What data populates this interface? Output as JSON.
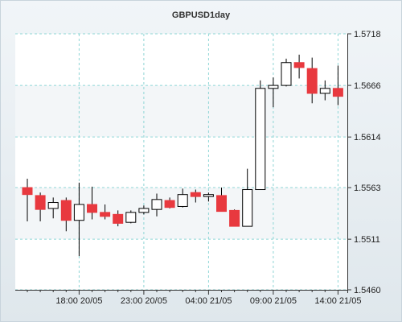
{
  "chart_data": {
    "type": "candlestick",
    "title": "GBPUSD1day",
    "xlabel": "",
    "ylabel": "",
    "ylim": [
      1.546,
      1.5718
    ],
    "y_ticks": [
      "1.5718",
      "1.5666",
      "1.5614",
      "1.5563",
      "1.5511",
      "1.5460"
    ],
    "y_tick_values": [
      1.5718,
      1.5666,
      1.5614,
      1.5563,
      1.5511,
      1.546
    ],
    "x_ticks": [
      "18:00 20/05",
      "23:00 20/05",
      "04:00 21/05",
      "09:00 21/05",
      "14:00 21/05"
    ],
    "x_tick_candle_index": [
      4,
      9,
      14,
      19,
      24
    ],
    "grid": true,
    "colors": {
      "up_fill": "#ffffff",
      "down_fill": "#e8393f",
      "outline": "#000000",
      "grid": "#8fd6d6",
      "band": "#ffffff"
    },
    "candles": [
      {
        "o": 1.5563,
        "h": 1.5572,
        "l": 1.5529,
        "c": 1.5556
      },
      {
        "o": 1.5555,
        "h": 1.5558,
        "l": 1.5529,
        "c": 1.5541
      },
      {
        "o": 1.5542,
        "h": 1.5553,
        "l": 1.5532,
        "c": 1.5548
      },
      {
        "o": 1.555,
        "h": 1.5553,
        "l": 1.5519,
        "c": 1.553
      },
      {
        "o": 1.553,
        "h": 1.5568,
        "l": 1.5494,
        "c": 1.5546
      },
      {
        "o": 1.5546,
        "h": 1.5564,
        "l": 1.5531,
        "c": 1.5538
      },
      {
        "o": 1.5538,
        "h": 1.5546,
        "l": 1.5531,
        "c": 1.5534
      },
      {
        "o": 1.5536,
        "h": 1.554,
        "l": 1.5524,
        "c": 1.5527
      },
      {
        "o": 1.5528,
        "h": 1.554,
        "l": 1.5527,
        "c": 1.5538
      },
      {
        "o": 1.5538,
        "h": 1.5545,
        "l": 1.5536,
        "c": 1.5542
      },
      {
        "o": 1.5541,
        "h": 1.5557,
        "l": 1.5534,
        "c": 1.5551
      },
      {
        "o": 1.555,
        "h": 1.5553,
        "l": 1.5542,
        "c": 1.5543
      },
      {
        "o": 1.5544,
        "h": 1.5562,
        "l": 1.5543,
        "c": 1.5556
      },
      {
        "o": 1.5558,
        "h": 1.5561,
        "l": 1.5548,
        "c": 1.5554
      },
      {
        "o": 1.5554,
        "h": 1.5558,
        "l": 1.5549,
        "c": 1.5556
      },
      {
        "o": 1.5555,
        "h": 1.5563,
        "l": 1.5539,
        "c": 1.5539
      },
      {
        "o": 1.554,
        "h": 1.5541,
        "l": 1.5524,
        "c": 1.5524
      },
      {
        "o": 1.5524,
        "h": 1.5582,
        "l": 1.5524,
        "c": 1.5561
      },
      {
        "o": 1.5561,
        "h": 1.5671,
        "l": 1.5561,
        "c": 1.5663
      },
      {
        "o": 1.5663,
        "h": 1.5674,
        "l": 1.5644,
        "c": 1.5666
      },
      {
        "o": 1.5666,
        "h": 1.5693,
        "l": 1.5665,
        "c": 1.5689
      },
      {
        "o": 1.5689,
        "h": 1.5697,
        "l": 1.5673,
        "c": 1.5684
      },
      {
        "o": 1.5683,
        "h": 1.5694,
        "l": 1.5648,
        "c": 1.5658
      },
      {
        "o": 1.5658,
        "h": 1.5671,
        "l": 1.5651,
        "c": 1.5663
      },
      {
        "o": 1.5663,
        "h": 1.5686,
        "l": 1.5646,
        "c": 1.5655
      }
    ]
  }
}
